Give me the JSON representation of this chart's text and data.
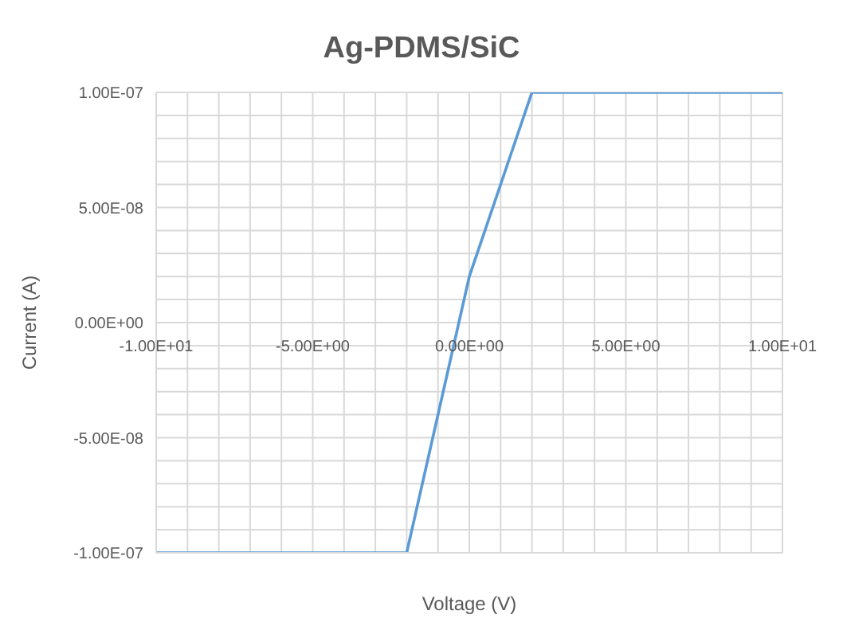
{
  "chart_data": {
    "type": "line",
    "title": "Ag-PDMS/SiC",
    "xlabel": "Voltage (V)",
    "ylabel": "Current (A)",
    "x": [
      -10,
      -2,
      0,
      2,
      10
    ],
    "series": [
      {
        "color": "#5b9bd5",
        "values": [
          -1e-07,
          -1e-07,
          2e-08,
          1e-07,
          1e-07
        ]
      }
    ],
    "xlim": [
      -10,
      10
    ],
    "xticks": [
      {
        "value": -10,
        "label": "-1.00E+01"
      },
      {
        "value": -9,
        "label": null
      },
      {
        "value": -8,
        "label": null
      },
      {
        "value": -7,
        "label": null
      },
      {
        "value": -6,
        "label": null
      },
      {
        "value": -5,
        "label": "-5.00E+00"
      },
      {
        "value": -4,
        "label": null
      },
      {
        "value": -3,
        "label": null
      },
      {
        "value": -2,
        "label": null
      },
      {
        "value": -1,
        "label": null
      },
      {
        "value": 0,
        "label": "0.00E+00"
      },
      {
        "value": 1,
        "label": null
      },
      {
        "value": 2,
        "label": null
      },
      {
        "value": 3,
        "label": null
      },
      {
        "value": 4,
        "label": null
      },
      {
        "value": 5,
        "label": "5.00E+00"
      },
      {
        "value": 6,
        "label": null
      },
      {
        "value": 7,
        "label": null
      },
      {
        "value": 8,
        "label": null
      },
      {
        "value": 9,
        "label": null
      },
      {
        "value": 10,
        "label": "1.00E+01"
      }
    ],
    "ylim": [
      -1e-07,
      1e-07
    ],
    "yticks": [
      {
        "value": -1e-07,
        "label": "-1.00E-07"
      },
      {
        "value": -9e-08,
        "label": null
      },
      {
        "value": -8e-08,
        "label": null
      },
      {
        "value": -7e-08,
        "label": null
      },
      {
        "value": -6e-08,
        "label": null
      },
      {
        "value": -5e-08,
        "label": "-5.00E-08"
      },
      {
        "value": -4e-08,
        "label": null
      },
      {
        "value": -3e-08,
        "label": null
      },
      {
        "value": -2e-08,
        "label": null
      },
      {
        "value": -1e-08,
        "label": null
      },
      {
        "value": 0,
        "label": "0.00E+00"
      },
      {
        "value": 1e-08,
        "label": null
      },
      {
        "value": 2e-08,
        "label": null
      },
      {
        "value": 3e-08,
        "label": null
      },
      {
        "value": 4e-08,
        "label": null
      },
      {
        "value": 5e-08,
        "label": "5.00E-08"
      },
      {
        "value": 6e-08,
        "label": null
      },
      {
        "value": 7e-08,
        "label": null
      },
      {
        "value": 8e-08,
        "label": null
      },
      {
        "value": 9e-08,
        "label": null
      },
      {
        "value": 1e-07,
        "label": "1.00E-07"
      }
    ],
    "grid": true,
    "marker": "none",
    "line_style": "solid",
    "legend": false
  }
}
